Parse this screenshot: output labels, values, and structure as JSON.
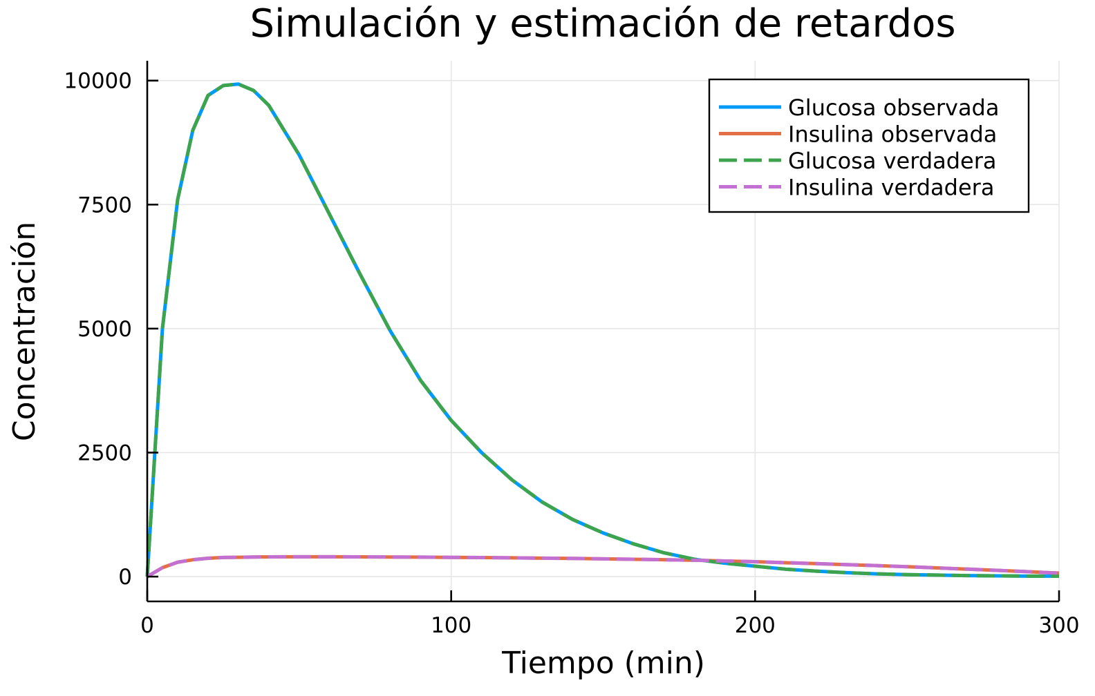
{
  "chart_data": {
    "type": "line",
    "title": "Simulación y estimación de retardos",
    "xlabel": "Tiempo (min)",
    "ylabel": "Concentración",
    "xlim": [
      0,
      300
    ],
    "ylim": [
      -500,
      10400
    ],
    "xticks": [
      0,
      100,
      200,
      300
    ],
    "xtick_labels": [
      "0",
      "100",
      "200",
      "300"
    ],
    "yticks": [
      0,
      2500,
      5000,
      7500,
      10000
    ],
    "ytick_labels": [
      "0",
      "2500",
      "5000",
      "7500",
      "10000"
    ],
    "grid": true,
    "legend_position": "top-right",
    "x": [
      0,
      5,
      10,
      15,
      20,
      25,
      30,
      35,
      40,
      50,
      60,
      70,
      80,
      90,
      100,
      110,
      120,
      130,
      140,
      150,
      160,
      170,
      180,
      190,
      200,
      210,
      220,
      230,
      240,
      250,
      260,
      270,
      280,
      290,
      300
    ],
    "series": [
      {
        "name": "Glucosa observada",
        "style": "solid",
        "color": "#009af9",
        "values": [
          0,
          5000,
          7600,
          9000,
          9700,
          9900,
          9930,
          9800,
          9500,
          8500,
          7300,
          6100,
          4950,
          3950,
          3150,
          2500,
          1950,
          1500,
          1150,
          880,
          660,
          480,
          350,
          270,
          210,
          150,
          110,
          80,
          55,
          40,
          30,
          20,
          15,
          10,
          10
        ]
      },
      {
        "name": "Insulina observada",
        "style": "solid",
        "color": "#e26f46",
        "values": [
          0,
          180,
          290,
          340,
          370,
          385,
          390,
          395,
          398,
          400,
          400,
          398,
          395,
          392,
          388,
          384,
          378,
          372,
          366,
          358,
          350,
          340,
          330,
          315,
          300,
          280,
          262,
          242,
          222,
          200,
          175,
          150,
          125,
          98,
          70
        ]
      },
      {
        "name": "Glucosa verdadera",
        "style": "dashed",
        "color": "#3da44d",
        "values": [
          0,
          5000,
          7600,
          9000,
          9700,
          9900,
          9930,
          9800,
          9500,
          8500,
          7300,
          6100,
          4950,
          3950,
          3150,
          2500,
          1950,
          1500,
          1150,
          880,
          660,
          480,
          350,
          270,
          210,
          150,
          110,
          80,
          55,
          40,
          30,
          20,
          15,
          10,
          10
        ]
      },
      {
        "name": "Insulina verdadera",
        "style": "dashed",
        "color": "#c271d2",
        "values": [
          0,
          180,
          290,
          340,
          370,
          385,
          390,
          395,
          398,
          400,
          400,
          398,
          395,
          392,
          388,
          384,
          378,
          372,
          366,
          358,
          350,
          340,
          330,
          315,
          300,
          280,
          262,
          242,
          222,
          200,
          175,
          150,
          125,
          98,
          70
        ]
      }
    ]
  }
}
